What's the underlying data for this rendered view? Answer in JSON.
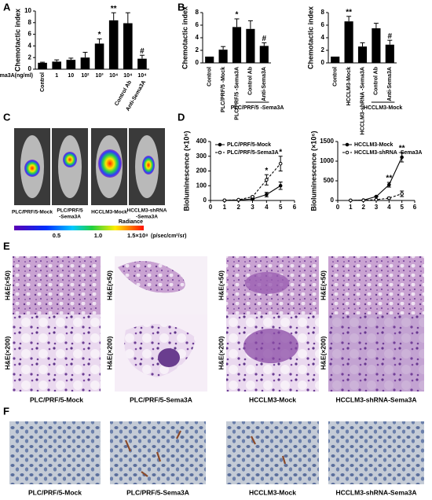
{
  "panel_labels": [
    "A",
    "B",
    "C",
    "D",
    "E",
    "F"
  ],
  "chart_data": [
    {
      "type": "bar",
      "y_label": "Chemotactic index",
      "x_row_label": "Sema3A(ng/ml)",
      "categories": [
        "Control",
        "1",
        "10",
        "10²",
        "10³",
        "10⁴",
        "10⁴",
        "10⁴"
      ],
      "treatments": [
        null,
        null,
        null,
        null,
        null,
        null,
        "Control Ab",
        "Anti-Sema3A"
      ],
      "values": [
        1.1,
        1.3,
        1.6,
        2.0,
        4.4,
        8.4,
        7.9,
        1.8
      ],
      "errors": [
        0.1,
        0.3,
        0.3,
        0.9,
        0.8,
        1.3,
        1.8,
        0.6
      ],
      "sig_labels": [
        null,
        null,
        null,
        null,
        "*",
        "**",
        null,
        "#"
      ],
      "color": "#000000",
      "ylim": [
        0,
        10
      ],
      "yticks": [
        0,
        2,
        4,
        6,
        8,
        10
      ],
      "x_label_rotation": 0
    },
    {
      "type": "bar",
      "y_label": "Chemotactic index",
      "group_label": "PLC/PRF/5 -Sema3A",
      "categories": [
        "Control",
        "PLC/PRF/5 -Mock",
        "PLC/PRF/5 -Sema3A",
        "Control Ab",
        "Anti-Sema3A"
      ],
      "values": [
        1.0,
        2.1,
        5.7,
        5.4,
        2.7
      ],
      "errors": [
        0,
        0.5,
        1.3,
        1.3,
        0.5
      ],
      "sig_labels": [
        null,
        null,
        "*",
        null,
        "#"
      ],
      "color": "#000000",
      "ylim": [
        0,
        8
      ],
      "yticks": [
        0,
        2,
        4,
        6,
        8
      ],
      "x_label_rotation": 90
    },
    {
      "type": "bar",
      "y_label": "Chemotactic index",
      "group_label": "HCCLM3-Mock",
      "categories": [
        "Control",
        "HCCLM3-Mock",
        "HCCLM3-shRNA -Sema3A",
        "Control Ab",
        "Anti-Sema3A"
      ],
      "values": [
        1.0,
        6.6,
        2.6,
        5.5,
        2.9
      ],
      "errors": [
        0,
        0.8,
        0.6,
        0.8,
        0.7
      ],
      "sig_labels": [
        null,
        "**",
        null,
        null,
        "#"
      ],
      "color": "#000000",
      "ylim": [
        0,
        8
      ],
      "yticks": [
        0,
        2,
        4,
        6,
        8
      ],
      "x_label_rotation": 90
    },
    {
      "type": "line",
      "y_label": "Bioluminescence (×10⁶)",
      "legend": "upper left",
      "x": [
        1,
        2,
        3,
        4,
        5
      ],
      "xlim": [
        0,
        6
      ],
      "xticks": [
        0,
        1,
        2,
        3,
        4,
        5,
        6
      ],
      "ylim": [
        0,
        400
      ],
      "yticks": [
        0,
        100,
        200,
        300,
        400
      ],
      "series": [
        {
          "name": "PLC/PRF/5-Mock",
          "color": "#000000",
          "line_style": "solid",
          "values": [
            1,
            3,
            10,
            40,
            100
          ],
          "errors": [
            0,
            0,
            3,
            15,
            25
          ]
        },
        {
          "name": "PLC/PRF/5-Sema3A",
          "color": "#000000",
          "line_style": "dashed",
          "values": [
            1,
            5,
            25,
            140,
            250
          ],
          "errors": [
            0,
            0,
            5,
            35,
            50
          ]
        }
      ],
      "sig_labels": [
        null,
        null,
        null,
        "*",
        "*"
      ]
    },
    {
      "type": "line",
      "y_label": "Bioluminescence (×10⁶)",
      "legend": "upper left",
      "x": [
        1,
        2,
        3,
        4,
        5
      ],
      "xlim": [
        0,
        6
      ],
      "xticks": [
        0,
        1,
        2,
        3,
        4,
        5,
        6
      ],
      "ylim": [
        0,
        1500
      ],
      "yticks": [
        0,
        500,
        1000,
        1500
      ],
      "series": [
        {
          "name": "HCCLM3-Mock",
          "color": "#000000",
          "line_style": "solid",
          "values": [
            2,
            10,
            100,
            400,
            1100
          ],
          "errors": [
            0,
            0,
            10,
            60,
            120
          ]
        },
        {
          "name": "HCCLM3-shRNA -Sema3A",
          "color": "#000000",
          "line_style": "dashed",
          "values": [
            2,
            5,
            20,
            60,
            170
          ],
          "errors": [
            0,
            0,
            5,
            20,
            70
          ]
        }
      ],
      "sig_labels": [
        null,
        null,
        null,
        "**",
        "**"
      ]
    }
  ],
  "panel_c": {
    "image_labels": [
      [
        "PLC/PRF/5-Mock"
      ],
      [
        "PLC/PRF/5",
        "-Sema3A"
      ],
      [
        "HCCLM3-Mock"
      ],
      [
        "HCCLM3-shRNA",
        "-Sema3A"
      ]
    ],
    "colorbar": {
      "title": "Radiance",
      "unit": "(p/sec/cm²/sr)",
      "tick_labels": [
        "0.5",
        "1.0",
        "1.5×10⁸"
      ]
    }
  },
  "panel_e": {
    "row_labels": [
      "H&E(×50)",
      "H&E(×200)"
    ],
    "captions": [
      "PLC/PRF/5-Mock",
      "PLC/PRF/5-Sema3A",
      "HCCLM3-Mock",
      "HCCLM3-shRNA-Sema3A"
    ]
  },
  "panel_f": {
    "captions": [
      "PLC/PRF/5-Mock",
      "PLC/PRF/5-Sema3A",
      "HCCLM3-Mock",
      "HCCLM3-shRNA-Sema3A"
    ]
  }
}
